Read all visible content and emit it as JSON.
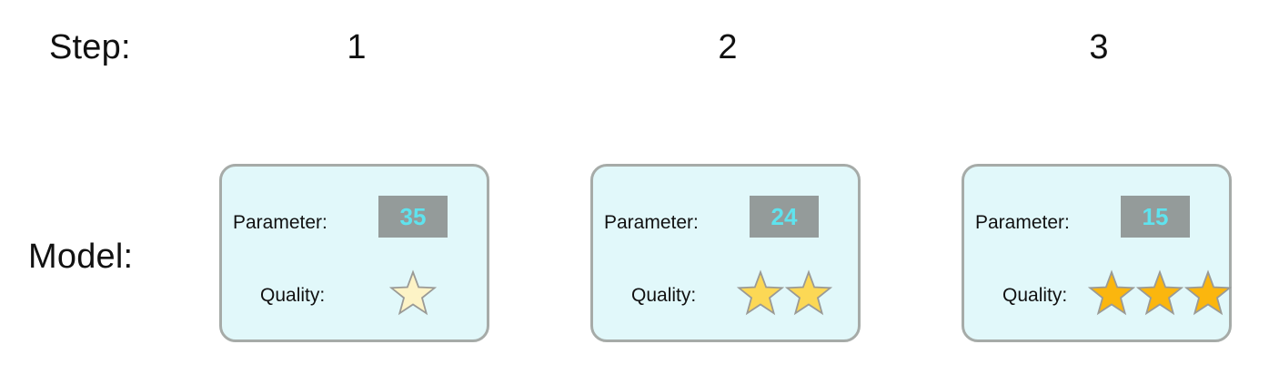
{
  "labels": {
    "step": "Step:",
    "model": "Model:"
  },
  "colors": {
    "card_background": "#e1f8fa",
    "card_border": "#a6aba8",
    "parameter_box": "#949b9a",
    "parameter_text": "#5fe3ee"
  },
  "steps": [
    {
      "number": "1",
      "parameter_label": "Parameter:",
      "parameter_value": "35",
      "quality_label": "Quality:",
      "stars": 1,
      "star_color": "#fdf3c6"
    },
    {
      "number": "2",
      "parameter_label": "Parameter:",
      "parameter_value": "24",
      "quality_label": "Quality:",
      "stars": 2,
      "star_color": "#fcd855"
    },
    {
      "number": "3",
      "parameter_label": "Parameter:",
      "parameter_value": "15",
      "quality_label": "Quality:",
      "stars": 3,
      "star_color": "#fbb60e"
    }
  ]
}
